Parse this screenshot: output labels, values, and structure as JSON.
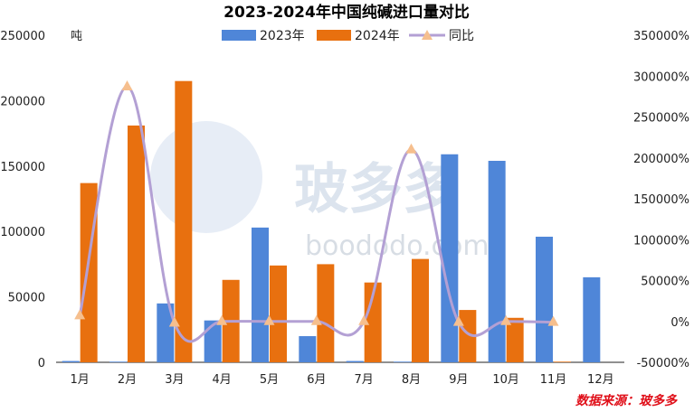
{
  "chart_data": {
    "type": "bar",
    "title": "2023-2024年中国纯碱进口量对比",
    "unit_label": "吨",
    "categories": [
      "1月",
      "2月",
      "3月",
      "4月",
      "5月",
      "6月",
      "7月",
      "8月",
      "9月",
      "10月",
      "11月",
      "12月"
    ],
    "series": [
      {
        "name": "2023年",
        "type": "bar",
        "axis": "left",
        "color": "#4f86d8",
        "values": [
          1000,
          500,
          45000,
          32000,
          103000,
          20000,
          1000,
          500,
          159000,
          154000,
          96000,
          65000
        ]
      },
      {
        "name": "2024年",
        "type": "bar",
        "axis": "left",
        "color": "#e8700f",
        "values": [
          137000,
          181000,
          215000,
          63000,
          74000,
          75000,
          61000,
          79000,
          40000,
          34000,
          500,
          null
        ]
      },
      {
        "name": "同比",
        "type": "line",
        "axis": "right",
        "color": "#b3a0d4",
        "marker_color": "#f6bf8e",
        "values": [
          7000,
          287000,
          -2000,
          0,
          0,
          0,
          0,
          210000,
          -1000,
          0,
          -1000,
          null
        ]
      }
    ],
    "y_left": {
      "min": 0,
      "max": 250000,
      "step": 50000,
      "ticks": [
        "0",
        "50000",
        "100000",
        "150000",
        "200000",
        "250000"
      ]
    },
    "y_right": {
      "min": -50000,
      "max": 350000,
      "step": 50000,
      "ticks": [
        "-50000%",
        "0%",
        "50000%",
        "100000%",
        "150000%",
        "200000%",
        "250000%",
        "300000%",
        "350000%"
      ]
    },
    "legend": {
      "position": "top-center"
    },
    "grid": false
  },
  "watermark": {
    "text": "玻多多",
    "url": "boododo.com"
  },
  "source": "数据来源：玻多多"
}
